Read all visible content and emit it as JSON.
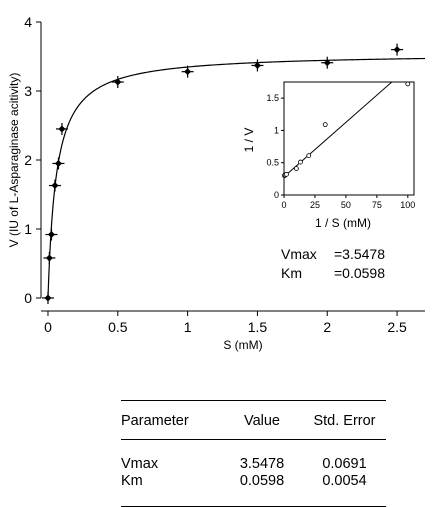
{
  "chart_data": [
    {
      "type": "scatter",
      "title": "",
      "xlabel": "S (mM)",
      "ylabel": "V (IU of L-Asparaginase acitivity)",
      "xlim": [
        -0.05,
        2.7
      ],
      "ylim": [
        0,
        4
      ],
      "x_ticks": [
        "0",
        "0.5",
        "1",
        "1.5",
        "2",
        "2.5"
      ],
      "y_ticks": [
        "0",
        "1",
        "2",
        "3",
        "4"
      ],
      "grid": false,
      "series": [
        {
          "marker": "filled-cross-error-bars",
          "points": [
            {
              "x": 0,
              "y": 0
            },
            {
              "x": 0.01,
              "y": 0.58
            },
            {
              "x": 0.025,
              "y": 0.92
            },
            {
              "x": 0.05,
              "y": 1.63
            },
            {
              "x": 0.075,
              "y": 1.95
            },
            {
              "x": 0.1,
              "y": 2.45
            },
            {
              "x": 0.5,
              "y": 3.13
            },
            {
              "x": 1.0,
              "y": 3.28
            },
            {
              "x": 1.5,
              "y": 3.37
            },
            {
              "x": 2.0,
              "y": 3.41
            },
            {
              "x": 2.5,
              "y": 3.6
            }
          ]
        }
      ],
      "fit_curve": {
        "model": "michaelis-menten",
        "vmax": 3.5478,
        "km": 0.0598
      },
      "annotations": [
        {
          "label": "Vmax",
          "value": "=3.5478"
        },
        {
          "label": "Km",
          "value": "=0.0598"
        }
      ]
    },
    {
      "type": "scatter",
      "title": "",
      "xlabel": "1 / S (mM)",
      "ylabel": "1 / V",
      "xlim": [
        0,
        105
      ],
      "ylim": [
        0,
        1.75
      ],
      "x_ticks": [
        "0",
        "25",
        "50",
        "75",
        "100"
      ],
      "y_ticks": [
        "0",
        "0.5",
        "1",
        "1.5"
      ],
      "series": [
        {
          "marker": "open-circle",
          "points": [
            {
              "x": 0.4,
              "y": 0.3
            },
            {
              "x": 0.67,
              "y": 0.31
            },
            {
              "x": 1.0,
              "y": 0.31
            },
            {
              "x": 2.0,
              "y": 0.32
            },
            {
              "x": 10,
              "y": 0.41
            },
            {
              "x": 13.3,
              "y": 0.51
            },
            {
              "x": 20,
              "y": 0.61
            },
            {
              "x": 33.3,
              "y": 1.09
            },
            {
              "x": 100,
              "y": 1.72
            }
          ]
        }
      ],
      "fit_line": {
        "slope": 0.01686,
        "intercept": 0.2819
      }
    }
  ],
  "table": {
    "headers": [
      "Parameter",
      "Value",
      "Std. Error"
    ],
    "rows": [
      [
        "Vmax",
        "3.5478",
        "0.0691"
      ],
      [
        "Km",
        "0.0598",
        "0.0054"
      ]
    ]
  }
}
